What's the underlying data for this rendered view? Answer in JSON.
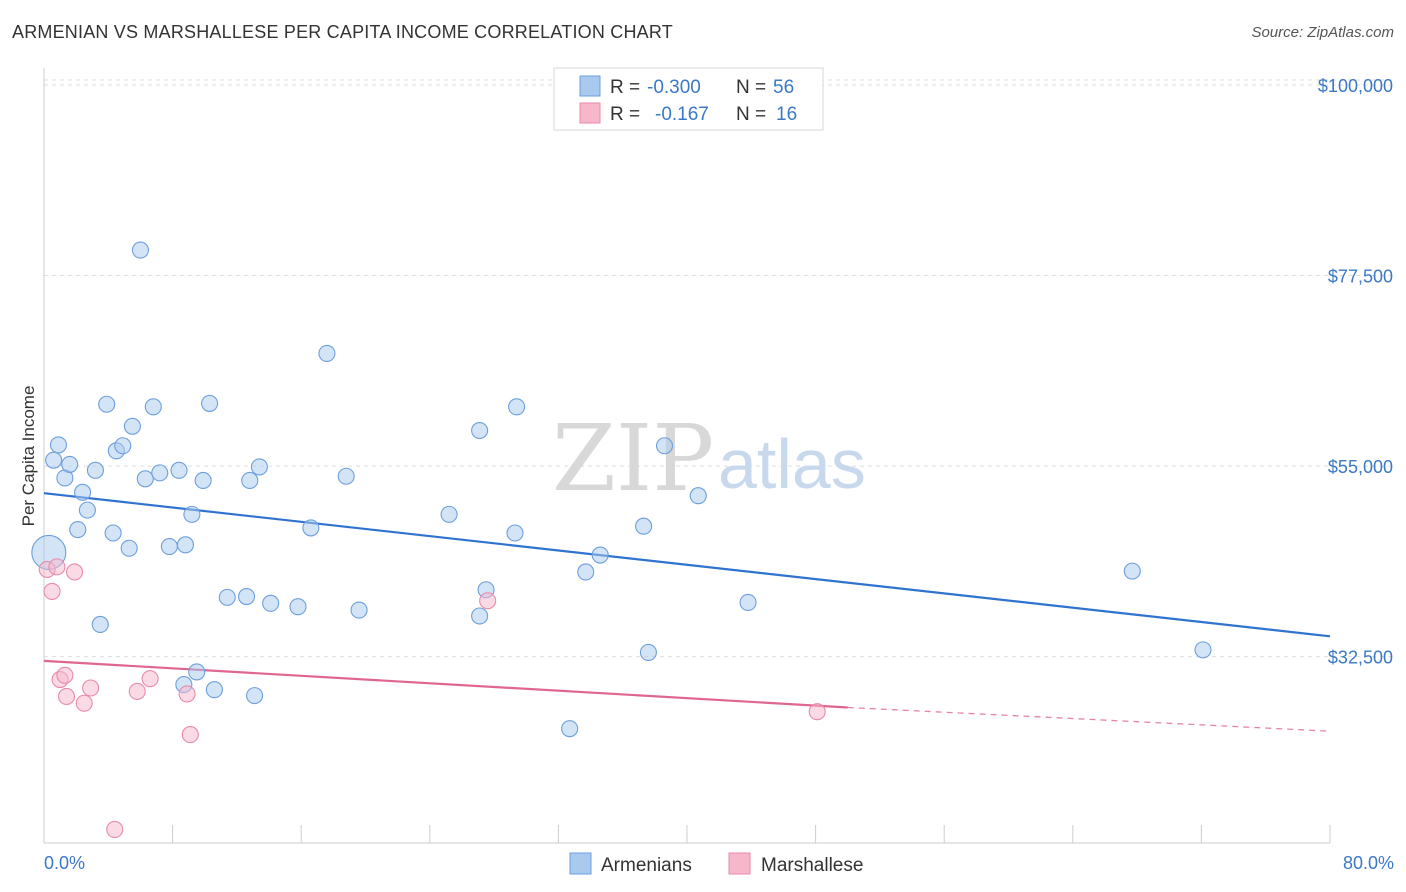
{
  "header": {
    "title": "ARMENIAN VS MARSHALLESE PER CAPITA INCOME CORRELATION CHART",
    "source": "Source: ZipAtlas.com"
  },
  "watermark": {
    "zip": "ZIP",
    "atlas": "atlas"
  },
  "legend": {
    "r_label": "R =",
    "n_label": "N =",
    "rows": [
      {
        "r": "-0.300",
        "n": "56",
        "color": "#a9c9ef"
      },
      {
        "r": "-0.167",
        "n": "16",
        "color": "#f6b7cb"
      }
    ]
  },
  "chart_data": {
    "type": "scatter",
    "title": "ARMENIAN VS MARSHALLESE PER CAPITA INCOME CORRELATION CHART",
    "xlabel": "",
    "ylabel": "Per Capita Income",
    "xlim": [
      0,
      80
    ],
    "ylim": [
      10500,
      102000
    ],
    "x_tick_labels": [
      "0.0%",
      "80.0%"
    ],
    "y_ticks": [
      32500,
      55000,
      77500,
      100000
    ],
    "y_tick_labels": [
      "$32,500",
      "$55,000",
      "$77,500",
      "$100,000"
    ],
    "grid": true,
    "legend_position": "top-center",
    "series": [
      {
        "name": "Armenians",
        "color": "#a9c9ef",
        "stroke": "#6b9fdc",
        "r": -0.3,
        "n": 56,
        "trend": {
          "x": [
            0,
            80
          ],
          "y": [
            51800,
            34900
          ],
          "color": "#2f73d0"
        },
        "points": [
          [
            0.3,
            44800
          ],
          [
            0.6,
            55700
          ],
          [
            0.9,
            57500
          ],
          [
            1.3,
            53600
          ],
          [
            1.6,
            55200
          ],
          [
            2.1,
            47500
          ],
          [
            2.4,
            51900
          ],
          [
            2.7,
            49800
          ],
          [
            3.2,
            54500
          ],
          [
            3.5,
            36300
          ],
          [
            3.9,
            62300
          ],
          [
            4.3,
            47100
          ],
          [
            4.5,
            56800
          ],
          [
            4.9,
            57400
          ],
          [
            5.3,
            45300
          ],
          [
            5.5,
            59700
          ],
          [
            6.0,
            80500
          ],
          [
            6.3,
            53500
          ],
          [
            6.8,
            62000
          ],
          [
            7.2,
            54200
          ],
          [
            7.8,
            45500
          ],
          [
            8.4,
            54500
          ],
          [
            8.7,
            29200
          ],
          [
            8.8,
            45700
          ],
          [
            9.2,
            49300
          ],
          [
            9.5,
            30700
          ],
          [
            9.9,
            53300
          ],
          [
            10.3,
            62400
          ],
          [
            10.6,
            28600
          ],
          [
            11.4,
            39500
          ],
          [
            12.6,
            39600
          ],
          [
            12.8,
            53300
          ],
          [
            13.1,
            27900
          ],
          [
            13.4,
            54900
          ],
          [
            14.1,
            38800
          ],
          [
            15.8,
            38400
          ],
          [
            16.6,
            47700
          ],
          [
            17.6,
            68300
          ],
          [
            18.8,
            53800
          ],
          [
            19.6,
            38000
          ],
          [
            25.2,
            49300
          ],
          [
            27.1,
            59200
          ],
          [
            27.1,
            37300
          ],
          [
            27.5,
            40400
          ],
          [
            29.3,
            47100
          ],
          [
            32.7,
            24000
          ],
          [
            33.7,
            42500
          ],
          [
            34.6,
            44500
          ],
          [
            37.3,
            47900
          ],
          [
            37.6,
            33000
          ],
          [
            38.6,
            57400
          ],
          [
            40.7,
            51500
          ],
          [
            43.8,
            38900
          ],
          [
            67.7,
            42600
          ],
          [
            72.1,
            33300
          ],
          [
            29.4,
            62000
          ]
        ]
      },
      {
        "name": "Marshallese",
        "color": "#f6b7cb",
        "stroke": "#e98aaa",
        "r": -0.167,
        "n": 16,
        "trend": {
          "x": [
            0,
            50
          ],
          "y": [
            32000,
            26500
          ],
          "dash_to": [
            80,
            23700
          ],
          "color": "#e06692"
        },
        "points": [
          [
            0.2,
            42800
          ],
          [
            0.5,
            40200
          ],
          [
            0.8,
            43100
          ],
          [
            1.0,
            29800
          ],
          [
            1.3,
            30300
          ],
          [
            1.4,
            27800
          ],
          [
            1.9,
            42500
          ],
          [
            2.5,
            27000
          ],
          [
            2.9,
            28800
          ],
          [
            4.4,
            12100
          ],
          [
            5.8,
            28400
          ],
          [
            6.6,
            29900
          ],
          [
            8.9,
            28100
          ],
          [
            9.1,
            23300
          ],
          [
            27.6,
            39100
          ],
          [
            48.1,
            26000
          ]
        ]
      }
    ]
  },
  "bottom_legend": [
    {
      "label": "Armenians",
      "color": "#a9c9ef"
    },
    {
      "label": "Marshallese",
      "color": "#f6b7cb"
    }
  ]
}
